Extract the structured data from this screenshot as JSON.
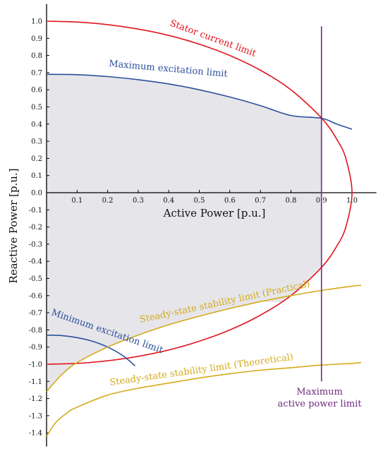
{
  "chart_data": {
    "type": "line",
    "title": "",
    "xlabel": "Active Power [p.u.]",
    "ylabel": "Reactive Power [p.u.]",
    "xlim": [
      0,
      1.08
    ],
    "ylim": [
      -1.48,
      1.1
    ],
    "x_ticks": [
      0.1,
      0.2,
      0.3,
      0.4,
      0.5,
      0.6,
      0.7,
      0.8,
      0.9,
      1.0
    ],
    "x_tick_labels": [
      "0.1",
      "0.2",
      "0.3",
      "0.4",
      "0.5",
      "0.6",
      "0.7",
      "0.8",
      "0.9",
      "1.0"
    ],
    "y_ticks": [
      1.0,
      0.9,
      0.8,
      0.7,
      0.6,
      0.5,
      0.4,
      0.3,
      0.2,
      0.1,
      0.0,
      -0.1,
      -0.2,
      -0.3,
      -0.4,
      -0.5,
      -0.6,
      -0.7,
      -0.8,
      -0.9,
      -1.0,
      -1.1,
      -1.2,
      -1.3,
      -1.4
    ],
    "y_tick_labels": [
      "1.0",
      "0.9",
      "0.8",
      "0.7",
      "0.6",
      "0.5",
      "0.4",
      "0.3",
      "0.2",
      "0.1",
      "0.0",
      "-0.1",
      "-0.2",
      "-0.3",
      "-0.4",
      "-0.5",
      "-0.6",
      "-0.7",
      "-0.8",
      "-0.9",
      "-1.0",
      "-1.1",
      "-1.2",
      "-1.3",
      "-1.4"
    ],
    "series": [
      {
        "name": "Stator current limit",
        "color": "#e0161e",
        "x": [
          0.0,
          0.1,
          0.2,
          0.3,
          0.4,
          0.5,
          0.6,
          0.7,
          0.8,
          0.9,
          0.95,
          0.98,
          1.0,
          0.98,
          0.95,
          0.9,
          0.8,
          0.7,
          0.6,
          0.5,
          0.4,
          0.3,
          0.2,
          0.1,
          0.0
        ],
        "y": [
          1.0,
          0.995,
          0.98,
          0.954,
          0.917,
          0.866,
          0.8,
          0.714,
          0.6,
          0.436,
          0.312,
          0.199,
          0.0,
          -0.199,
          -0.312,
          -0.436,
          -0.6,
          -0.714,
          -0.8,
          -0.866,
          -0.917,
          -0.954,
          -0.98,
          -0.995,
          -1.0
        ]
      },
      {
        "name": "Maximum excitation limit",
        "color": "#2c4f9c",
        "x": [
          0.0,
          0.1,
          0.2,
          0.3,
          0.4,
          0.5,
          0.6,
          0.7,
          0.8,
          0.9,
          0.95,
          1.0
        ],
        "y": [
          0.69,
          0.688,
          0.677,
          0.659,
          0.634,
          0.6,
          0.558,
          0.508,
          0.45,
          0.434,
          0.4,
          0.37
        ]
      },
      {
        "name": "Minimum excitation limit",
        "color": "#2c4f9c",
        "x": [
          0.0,
          0.05,
          0.1,
          0.15,
          0.2,
          0.25,
          0.29
        ],
        "y": [
          -0.83,
          -0.833,
          -0.845,
          -0.866,
          -0.9,
          -0.95,
          -1.01
        ]
      },
      {
        "name": "Steady-state stability limit (Practical)",
        "color": "#d4aa1a",
        "x": [
          0.0,
          0.05,
          0.1,
          0.2,
          0.3,
          0.4,
          0.5,
          0.6,
          0.7,
          0.8,
          0.9,
          1.0,
          1.03
        ],
        "y": [
          -1.16,
          -1.06,
          -0.99,
          -0.9,
          -0.83,
          -0.77,
          -0.72,
          -0.675,
          -0.635,
          -0.6,
          -0.57,
          -0.545,
          -0.54
        ]
      },
      {
        "name": "Steady-state stability limit (Theoretical)",
        "color": "#d4aa1a",
        "x": [
          0.0,
          0.03,
          0.07,
          0.1,
          0.2,
          0.3,
          0.4,
          0.5,
          0.6,
          0.7,
          0.8,
          0.9,
          1.0,
          1.03
        ],
        "y": [
          -1.42,
          -1.34,
          -1.28,
          -1.25,
          -1.18,
          -1.14,
          -1.11,
          -1.08,
          -1.055,
          -1.035,
          -1.02,
          -1.005,
          -0.995,
          -0.99
        ]
      },
      {
        "name": "Maximum active power limit",
        "color": "#6e2a80",
        "x": [
          0.9,
          0.9
        ],
        "y": [
          0.97,
          -1.1
        ]
      }
    ],
    "labels": {
      "stator": "Stator current limit",
      "max_exc": "Maximum excitation limit",
      "min_exc": "Minimum excitation limit",
      "practical": "Steady-state stability limit (Practical)",
      "theoretical": "Steady-state stability limit (Theoretical)",
      "max_power_line1": "Maximum",
      "max_power_line2": "active power limit"
    },
    "region_color": "#e6e6ea",
    "grid": false
  }
}
